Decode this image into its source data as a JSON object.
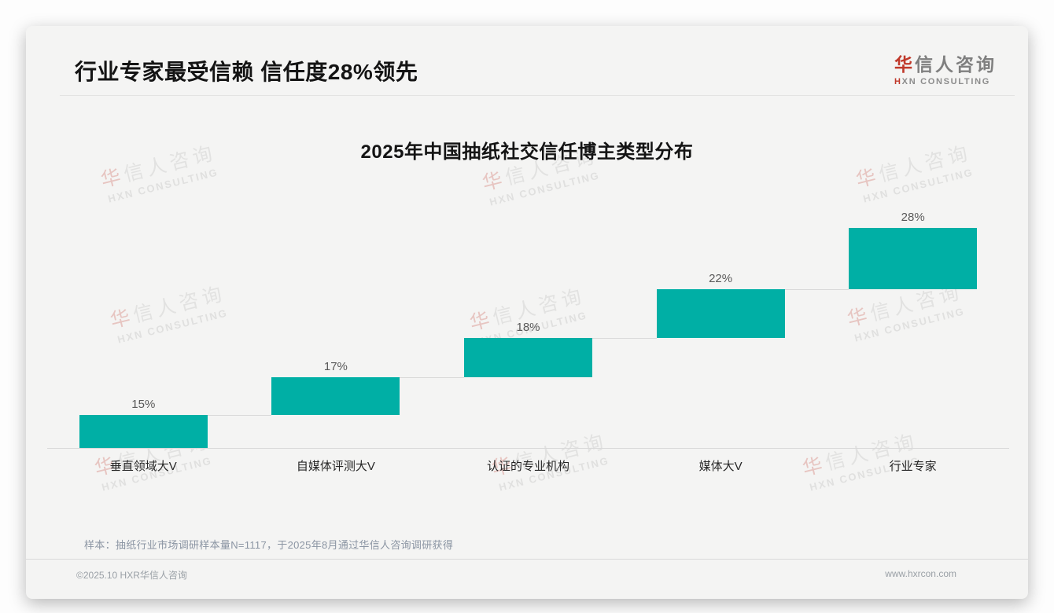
{
  "page": {
    "header": {
      "title": "行业专家最受信赖 信任度28%领先"
    },
    "logo": {
      "cn_first": "华",
      "cn_rest": "信人咨询",
      "en": "HXN CONSULTING"
    },
    "watermark": {
      "cn_first": "华",
      "cn_rest": "信人咨询",
      "en": "HXN CONSULTING"
    },
    "note": "样本：抽纸行业市场调研样本量N=1117，于2025年8月通过华信人咨询调研获得",
    "footer": {
      "left": "©2025.10 HXR华信人咨询",
      "right": "www.hxrcon.com"
    }
  },
  "chart_data": {
    "type": "bar",
    "subtype": "waterfall-steps",
    "title": "2025年中国抽纸社交信任博主类型分布",
    "categories": [
      "垂直领域大V",
      "自媒体评测大V",
      "认证的专业机构",
      "媒体大V",
      "行业专家"
    ],
    "values": [
      15,
      17,
      18,
      22,
      28
    ],
    "unit": "%",
    "ylim": [
      0,
      100
    ],
    "grid": false,
    "legend": false,
    "bar_color": "#00AFA5",
    "connector_color": "#d9d9d9",
    "axis_color": "#d9d9d9",
    "value_label_color": "#595959",
    "category_label_color": "#262626",
    "notes": "each bar starts where the previous bar ends (cumulative steps), thin gray connector lines between steps"
  }
}
